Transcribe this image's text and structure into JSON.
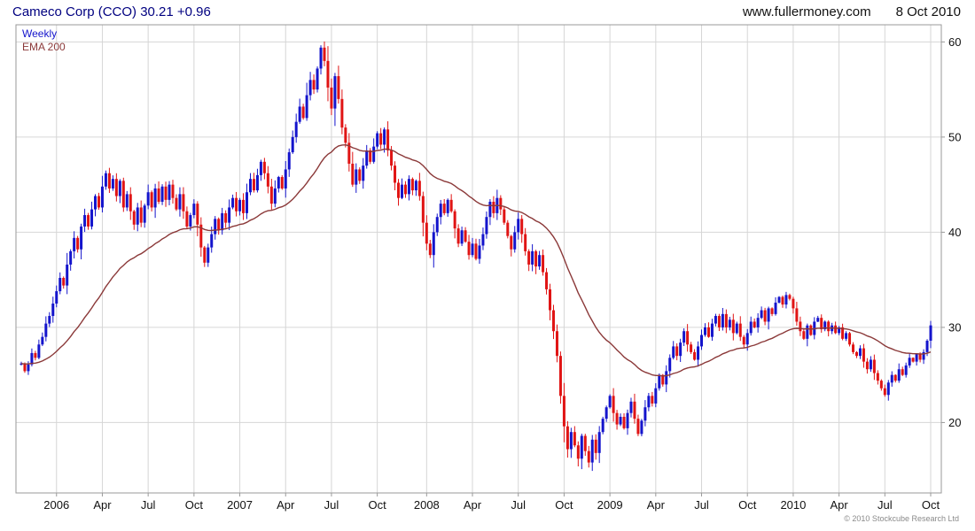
{
  "header": {
    "title": "Cameco Corp (CCO) 30.21 +0.96",
    "site": "www.fullermoney.com",
    "date": "8 Oct 2010"
  },
  "legend": {
    "series1": "Weekly",
    "series2": "EMA 200"
  },
  "footer": {
    "copyright": "© 2010 Stockcube Research Ltd"
  },
  "colors": {
    "up": "#1414cc",
    "down": "#e01414",
    "ema": "#8b3939",
    "grid": "#d6d6d6",
    "border": "#9a9a9a",
    "axis_text": "#111111"
  },
  "chart_data": {
    "type": "candlestick",
    "title": "Cameco Corp (CCO) 30.21 +0.96",
    "symbol": "CCO",
    "last_price": 30.21,
    "change": "+0.96",
    "interval": "weekly",
    "x_start_date": "2005-10-24",
    "x_end_label": "Oct",
    "xlabel": "",
    "ylabel": "",
    "ylim": [
      12.6,
      61.8
    ],
    "yticks": [
      20,
      30,
      40,
      50,
      60
    ],
    "x_tick_labels": [
      "2006",
      "Apr",
      "Jul",
      "Oct",
      "2007",
      "Apr",
      "Jul",
      "Oct",
      "2008",
      "Apr",
      "Jul",
      "Oct",
      "2009",
      "Apr",
      "Jul",
      "Oct",
      "2010",
      "Apr",
      "Jul",
      "Oct"
    ],
    "grid": true,
    "legend_position": "top-left",
    "overlay": {
      "label": "EMA 200",
      "period_weeks": 40
    },
    "closes": [
      26.2,
      25.4,
      26.1,
      27.3,
      26.8,
      28.2,
      29.0,
      30.4,
      31.2,
      32.5,
      33.8,
      35.2,
      34.4,
      36.6,
      38.0,
      39.4,
      38.2,
      40.6,
      41.8,
      40.6,
      42.4,
      43.8,
      42.6,
      44.8,
      46.2,
      44.6,
      45.6,
      43.8,
      45.4,
      42.6,
      44.0,
      42.2,
      40.8,
      42.6,
      41.0,
      42.8,
      44.2,
      42.6,
      44.6,
      43.2,
      44.8,
      43.4,
      45.0,
      43.6,
      42.4,
      44.0,
      42.2,
      40.6,
      41.8,
      43.0,
      40.8,
      38.4,
      36.8,
      38.4,
      39.8,
      41.4,
      40.2,
      42.0,
      41.0,
      42.6,
      43.6,
      42.2,
      43.4,
      42.0,
      44.2,
      45.6,
      44.4,
      46.0,
      47.4,
      46.2,
      44.8,
      43.0,
      44.6,
      45.8,
      44.6,
      46.6,
      48.4,
      50.0,
      51.6,
      53.2,
      52.0,
      54.4,
      56.0,
      55.0,
      57.2,
      59.4,
      58.0,
      55.2,
      53.0,
      56.4,
      54.0,
      51.0,
      49.4,
      47.2,
      45.0,
      46.6,
      45.4,
      47.0,
      48.6,
      47.4,
      49.0,
      50.4,
      49.2,
      50.8,
      48.6,
      47.0,
      45.2,
      43.6,
      45.0,
      44.0,
      45.6,
      44.4,
      45.4,
      43.8,
      41.0,
      38.8,
      37.6,
      40.0,
      41.6,
      43.0,
      42.0,
      43.4,
      42.2,
      40.4,
      38.8,
      40.2,
      39.0,
      37.6,
      38.8,
      37.2,
      38.6,
      39.8,
      41.6,
      43.2,
      42.0,
      43.6,
      42.4,
      41.0,
      39.6,
      38.2,
      40.0,
      41.4,
      39.8,
      38.0,
      36.6,
      38.0,
      36.4,
      37.6,
      35.8,
      34.0,
      31.8,
      29.6,
      27.0,
      22.8,
      19.6,
      17.2,
      19.0,
      17.6,
      16.2,
      18.6,
      17.0,
      15.8,
      18.2,
      16.8,
      19.0,
      20.4,
      21.6,
      22.8,
      21.0,
      19.8,
      20.6,
      19.4,
      21.0,
      22.2,
      20.4,
      18.8,
      20.2,
      21.6,
      22.8,
      22.0,
      23.6,
      25.0,
      24.0,
      25.4,
      26.8,
      28.0,
      27.0,
      28.4,
      29.6,
      28.2,
      27.4,
      26.6,
      28.0,
      29.2,
      30.0,
      29.0,
      30.4,
      31.2,
      30.0,
      31.4,
      30.0,
      30.8,
      29.4,
      30.4,
      29.0,
      28.2,
      29.4,
      30.6,
      30.0,
      31.0,
      31.8,
      30.6,
      32.0,
      31.4,
      32.6,
      33.2,
      32.4,
      33.4,
      33.0,
      32.0,
      30.6,
      29.6,
      28.8,
      30.2,
      29.2,
      30.6,
      31.0,
      29.8,
      30.6,
      29.6,
      30.2,
      29.4,
      30.0,
      28.8,
      29.4,
      28.2,
      27.4,
      27.0,
      27.8,
      26.4,
      25.6,
      26.6,
      25.2,
      24.4,
      23.6,
      22.9,
      24.2,
      25.0,
      24.4,
      25.6,
      25.0,
      26.0,
      26.8,
      26.4,
      27.2,
      26.6,
      27.4,
      28.6,
      30.21
    ]
  }
}
